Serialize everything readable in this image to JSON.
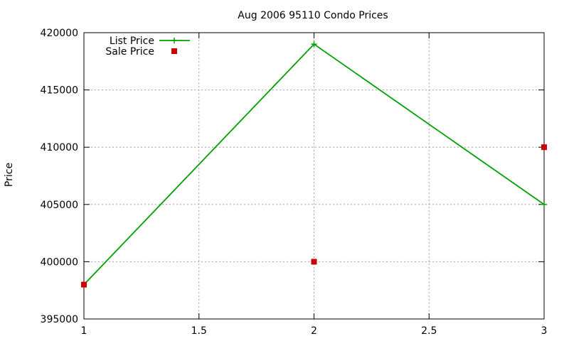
{
  "chart_data": {
    "type": "line",
    "title": "Aug 2006 95110 Condo Prices",
    "xlabel": "",
    "ylabel": "Price",
    "xlim": [
      1,
      3
    ],
    "ylim": [
      395000,
      420000
    ],
    "xticks": [
      1,
      1.5,
      2,
      2.5,
      3
    ],
    "yticks": [
      395000,
      400000,
      405000,
      410000,
      415000,
      420000
    ],
    "grid": true,
    "legend_position": "top-left",
    "series": [
      {
        "name": "List Price",
        "style": "line-points",
        "marker": "plus",
        "color": "#00a000",
        "x": [
          1,
          2,
          3
        ],
        "y": [
          398000,
          419000,
          405000
        ]
      },
      {
        "name": "Sale Price",
        "style": "points",
        "marker": "square",
        "color": "#cc0000",
        "x": [
          1,
          2,
          3
        ],
        "y": [
          398000,
          400000,
          410000
        ]
      }
    ]
  }
}
